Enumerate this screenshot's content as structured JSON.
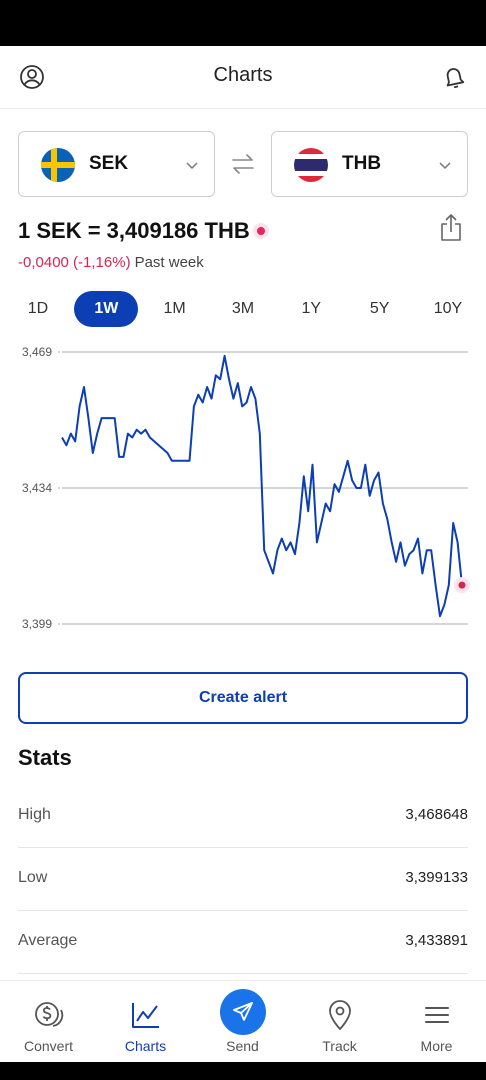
{
  "header": {
    "title": "Charts"
  },
  "from_currency": {
    "code": "SEK",
    "flag": "sweden-flag"
  },
  "to_currency": {
    "code": "THB",
    "flag": "thailand-flag"
  },
  "rate": {
    "text": "1 SEK = 3,409186 THB"
  },
  "change": {
    "value": "-0,0400 (-1,16%)",
    "period": "Past week"
  },
  "periods": [
    "1D",
    "1W",
    "1M",
    "3M",
    "1Y",
    "5Y",
    "10Y"
  ],
  "active_period": "1W",
  "chart_data": {
    "type": "line",
    "title": "",
    "xlabel": "",
    "ylabel": "",
    "y_ticks": [
      "3,469",
      "3,434",
      "3,399"
    ],
    "ylim": [
      3.399,
      3.469
    ],
    "grid": true,
    "series": [
      {
        "values": [
          3.447,
          3.445,
          3.448,
          3.446,
          3.455,
          3.46,
          3.452,
          3.443,
          3.448,
          3.452,
          3.452,
          3.452,
          3.452,
          3.442,
          3.442,
          3.448,
          3.447,
          3.449,
          3.448,
          3.449,
          3.447,
          3.446,
          3.445,
          3.444,
          3.443,
          3.441,
          3.441,
          3.441,
          3.441,
          3.441,
          3.455,
          3.458,
          3.456,
          3.46,
          3.457,
          3.463,
          3.462,
          3.468,
          3.462,
          3.457,
          3.461,
          3.455,
          3.456,
          3.46,
          3.457,
          3.448,
          3.418,
          3.415,
          3.412,
          3.418,
          3.421,
          3.418,
          3.42,
          3.417,
          3.425,
          3.437,
          3.428,
          3.44,
          3.42,
          3.425,
          3.43,
          3.428,
          3.435,
          3.433,
          3.437,
          3.441,
          3.436,
          3.434,
          3.434,
          3.44,
          3.432,
          3.436,
          3.438,
          3.43,
          3.426,
          3.42,
          3.415,
          3.42,
          3.414,
          3.417,
          3.418,
          3.421,
          3.412,
          3.418,
          3.418,
          3.409,
          3.401,
          3.404,
          3.409,
          3.425,
          3.42,
          3.409
        ],
        "color": "#0b3fb3"
      }
    ]
  },
  "alert_button": {
    "label": "Create alert"
  },
  "stats": {
    "title": "Stats",
    "rows": [
      {
        "label": "High",
        "value": "3,468648"
      },
      {
        "label": "Low",
        "value": "3,399133"
      },
      {
        "label": "Average",
        "value": "3,433891"
      }
    ]
  },
  "tabs": [
    {
      "label": "Convert",
      "icon": "convert-icon"
    },
    {
      "label": "Charts",
      "icon": "charts-icon"
    },
    {
      "label": "Send",
      "icon": "send-icon"
    },
    {
      "label": "Track",
      "icon": "track-icon"
    },
    {
      "label": "More",
      "icon": "menu-icon"
    }
  ],
  "colors": {
    "accent": "#0b3fb3",
    "negative": "#d6254f",
    "send": "#1a73e8"
  }
}
